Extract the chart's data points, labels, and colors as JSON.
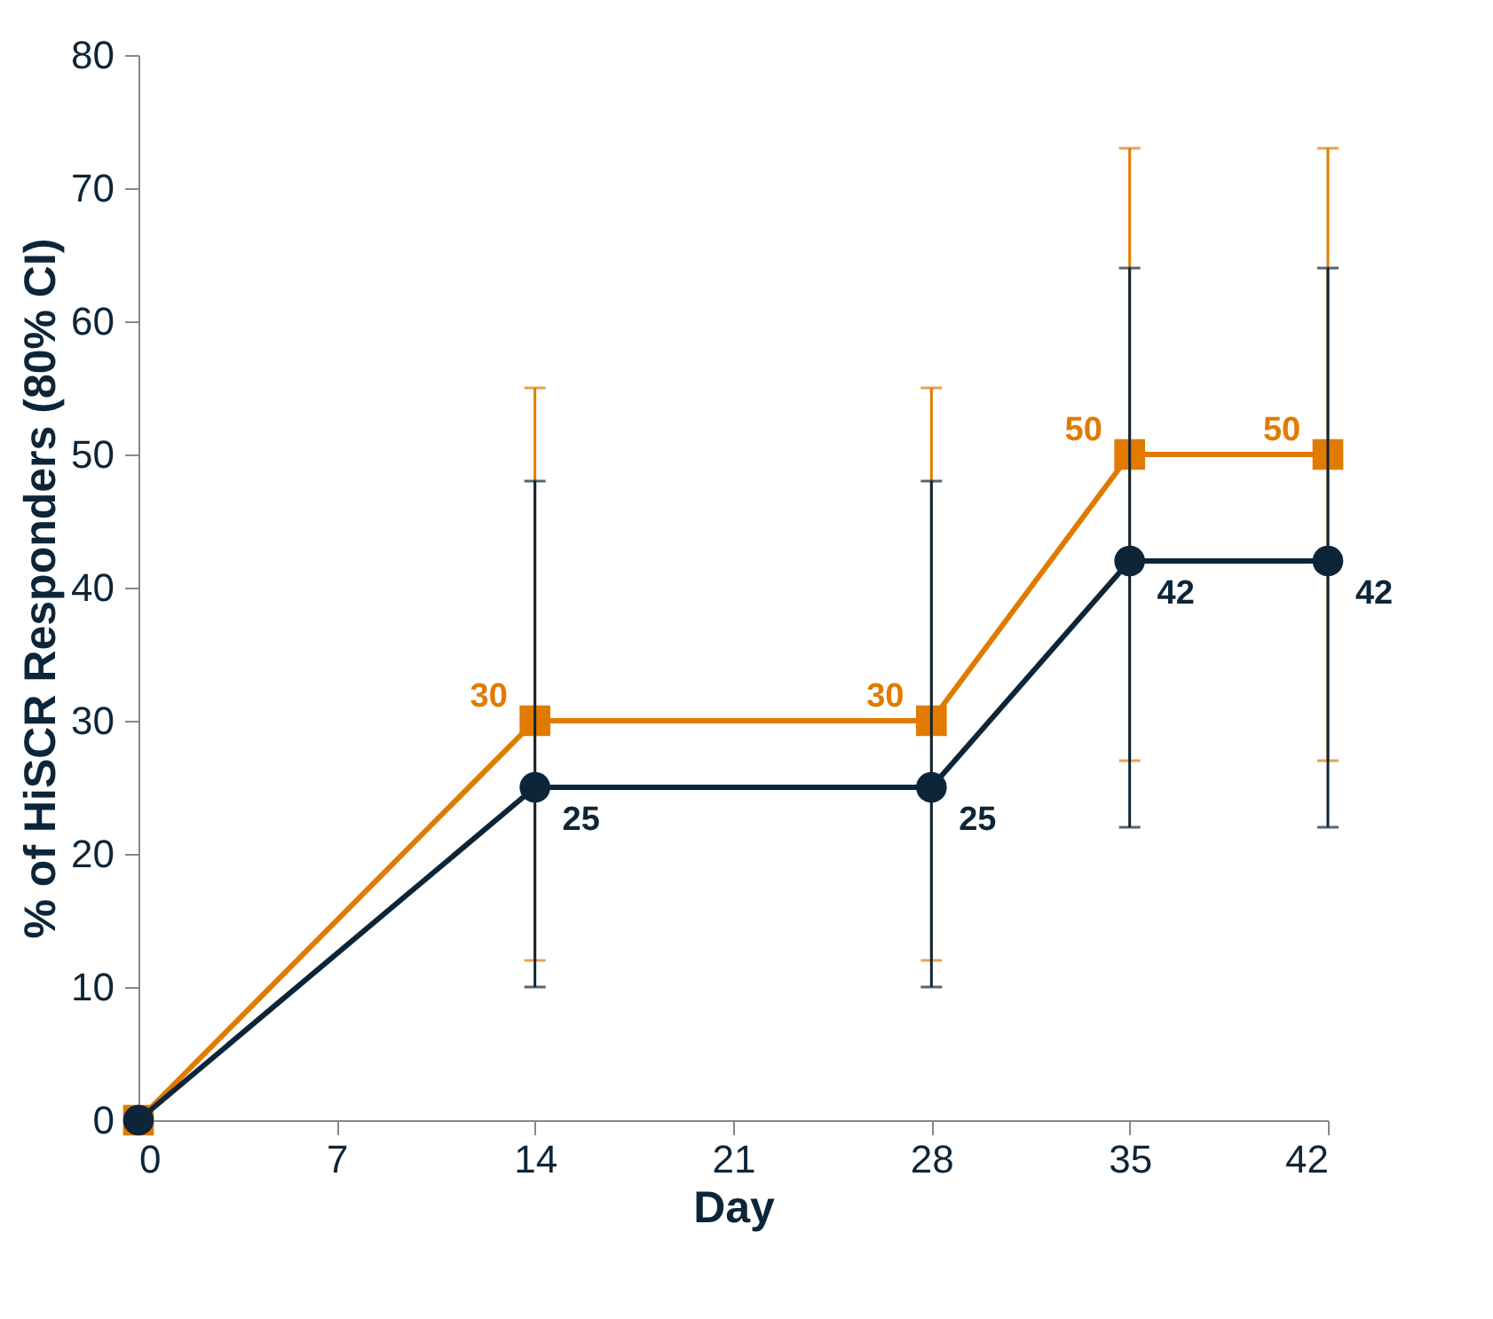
{
  "chart_data": {
    "type": "line",
    "xlabel": "Day",
    "ylabel": "% of HiSCR Responders (80% CI)",
    "x": [
      0,
      14,
      28,
      35,
      42
    ],
    "series": [
      {
        "color": "#e07b00",
        "marker": "square",
        "values": [
          0,
          30,
          30,
          50,
          50
        ],
        "errors": [
          null,
          [
            12,
            55
          ],
          [
            12,
            55
          ],
          [
            27,
            73
          ],
          [
            27,
            73
          ]
        ],
        "value_labels": [
          null,
          "30",
          "30",
          "50",
          "50"
        ]
      },
      {
        "color": "#0d2538",
        "marker": "circle",
        "values": [
          0,
          25,
          25,
          42,
          42
        ],
        "errors": [
          null,
          [
            10,
            48
          ],
          [
            10,
            48
          ],
          [
            22,
            64
          ],
          [
            22,
            64
          ]
        ],
        "value_labels": [
          null,
          "25",
          "25",
          "42",
          "42"
        ]
      }
    ],
    "xlim": [
      0,
      42
    ],
    "xticks": [
      0,
      7,
      14,
      21,
      28,
      35,
      42
    ],
    "ylim": [
      0,
      80
    ],
    "yticks": [
      0,
      10,
      20,
      30,
      40,
      50,
      60,
      70,
      80
    ],
    "grid": false,
    "line_style": "solid"
  }
}
